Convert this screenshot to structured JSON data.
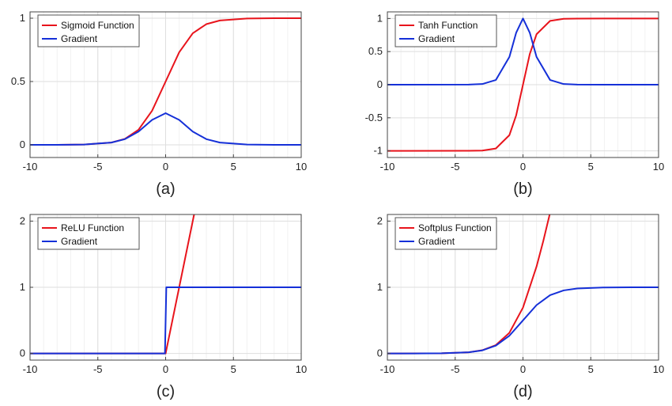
{
  "chart_data": [
    {
      "type": "line",
      "caption": "(a)",
      "function": "sigmoid",
      "xlim": [
        -10,
        10
      ],
      "ylim": [
        -0.1,
        1.05
      ],
      "xticks": [
        -10,
        -5,
        0,
        5,
        10
      ],
      "yticks": [
        0,
        0.5,
        1
      ],
      "xtick_labels": [
        "-10",
        "-5",
        "0",
        "5",
        "10"
      ],
      "ytick_labels": [
        "0",
        "0.5",
        "1"
      ],
      "grid": true,
      "legend_position": "top-left",
      "series": [
        {
          "name": "Sigmoid Function",
          "color": "#e8141c",
          "x": [
            -10,
            -8,
            -6,
            -4,
            -3,
            -2,
            -1,
            0,
            1,
            2,
            3,
            4,
            6,
            8,
            10
          ],
          "y": [
            0.0,
            0.0003,
            0.0025,
            0.018,
            0.047,
            0.119,
            0.269,
            0.5,
            0.731,
            0.881,
            0.953,
            0.982,
            0.9975,
            0.9997,
            1.0
          ]
        },
        {
          "name": "Gradient",
          "color": "#1530d8",
          "x": [
            -10,
            -8,
            -6,
            -4,
            -3,
            -2,
            -1,
            0,
            1,
            2,
            3,
            4,
            6,
            8,
            10
          ],
          "y": [
            0.0,
            0.0003,
            0.0025,
            0.018,
            0.045,
            0.105,
            0.197,
            0.25,
            0.197,
            0.105,
            0.045,
            0.018,
            0.0025,
            0.0003,
            0.0
          ]
        }
      ]
    },
    {
      "type": "line",
      "caption": "(b)",
      "function": "tanh",
      "xlim": [
        -10,
        10
      ],
      "ylim": [
        -1.1,
        1.1
      ],
      "xticks": [
        -10,
        -5,
        0,
        5,
        10
      ],
      "yticks": [
        -1,
        -0.5,
        0,
        0.5,
        1
      ],
      "xtick_labels": [
        "-10",
        "-5",
        "0",
        "5",
        "10"
      ],
      "ytick_labels": [
        "-1",
        "-0.5",
        "0",
        "0.5",
        "1"
      ],
      "grid": true,
      "legend_position": "top-left",
      "series": [
        {
          "name": "Tanh Function",
          "color": "#e8141c",
          "x": [
            -10,
            -4,
            -3,
            -2,
            -1,
            -0.5,
            0,
            0.5,
            1,
            2,
            3,
            4,
            10
          ],
          "y": [
            -1.0,
            -0.999,
            -0.995,
            -0.964,
            -0.762,
            -0.462,
            0.0,
            0.462,
            0.762,
            0.964,
            0.995,
            0.999,
            1.0
          ]
        },
        {
          "name": "Gradient",
          "color": "#1530d8",
          "x": [
            -10,
            -4,
            -3,
            -2,
            -1,
            -0.5,
            0,
            0.5,
            1,
            2,
            3,
            4,
            10
          ],
          "y": [
            0.0,
            0.001,
            0.01,
            0.071,
            0.42,
            0.786,
            1.0,
            0.786,
            0.42,
            0.071,
            0.01,
            0.001,
            0.0
          ]
        }
      ]
    },
    {
      "type": "line",
      "caption": "(c)",
      "function": "relu",
      "xlim": [
        -10,
        10
      ],
      "ylim": [
        -0.1,
        2.1
      ],
      "xticks": [
        -10,
        -5,
        0,
        5,
        10
      ],
      "yticks": [
        0,
        1,
        2
      ],
      "xtick_labels": [
        "-10",
        "-5",
        "0",
        "5",
        "10"
      ],
      "ytick_labels": [
        "0",
        "1",
        "2"
      ],
      "grid": true,
      "legend_position": "top-left",
      "series": [
        {
          "name": "ReLU Function",
          "color": "#e8141c",
          "x": [
            -10,
            0,
            2.1
          ],
          "y": [
            0,
            0,
            2.1
          ]
        },
        {
          "name": "Gradient",
          "color": "#1530d8",
          "x": [
            -10,
            -0.05,
            0.05,
            10
          ],
          "y": [
            0,
            0,
            1,
            1
          ]
        }
      ]
    },
    {
      "type": "line",
      "caption": "(d)",
      "function": "softplus",
      "xlim": [
        -10,
        10
      ],
      "ylim": [
        -0.1,
        2.1
      ],
      "xticks": [
        -10,
        -5,
        0,
        5,
        10
      ],
      "yticks": [
        0,
        1,
        2
      ],
      "xtick_labels": [
        "-10",
        "-5",
        "0",
        "5",
        "10"
      ],
      "ytick_labels": [
        "0",
        "1",
        "2"
      ],
      "grid": true,
      "legend_position": "top-left",
      "series": [
        {
          "name": "Softplus  Function",
          "color": "#e8141c",
          "x": [
            -10,
            -6,
            -4,
            -3,
            -2,
            -1,
            0,
            1,
            1.5,
            2.0
          ],
          "y": [
            0.0,
            0.0025,
            0.018,
            0.049,
            0.127,
            0.313,
            0.693,
            1.313,
            1.701,
            2.127
          ]
        },
        {
          "name": "Gradient",
          "color": "#1530d8",
          "x": [
            -10,
            -8,
            -6,
            -4,
            -3,
            -2,
            -1,
            0,
            1,
            2,
            3,
            4,
            6,
            8,
            10
          ],
          "y": [
            0.0,
            0.0003,
            0.0025,
            0.018,
            0.047,
            0.119,
            0.269,
            0.5,
            0.731,
            0.881,
            0.953,
            0.982,
            0.9975,
            0.9997,
            1.0
          ]
        }
      ]
    }
  ]
}
